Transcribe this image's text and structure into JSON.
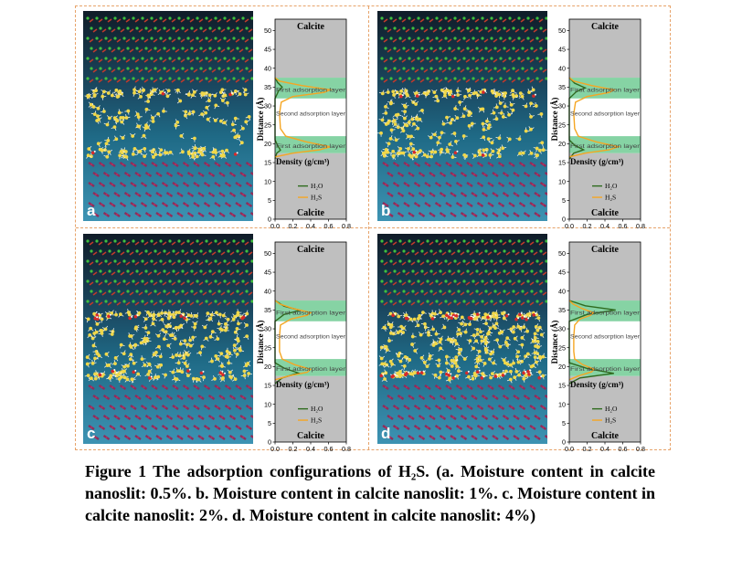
{
  "figure": {
    "caption": "Figure 1 The adsorption configurations of H₂S. (a. Moisture content in calcite nanoslit: 0.5%. b. Moisture content in calcite nanoslit: 1%. c. Moisture content in calcite nanoslit: 2%. d. Moisture content in calcite nanoslit:  4%)",
    "colors": {
      "h2o": "#2f6b1f",
      "h2s": "#f5a623",
      "layer_band": "#86d3a4",
      "slab": "#bfbfbf",
      "gap": "#ffffff"
    }
  },
  "panels": [
    {
      "letter": "a",
      "top_label": "Calcite",
      "bottom_label": "Calcite",
      "ylabel": "Distance (Å)",
      "xlabel": "Density (g/cm³)",
      "layer_labels": [
        "First adsorption layer",
        "Second adsorption layer",
        "First adsorption layer"
      ],
      "legend": [
        "H₂O",
        "H₂S"
      ],
      "chart_data": {
        "type": "line",
        "ylim": [
          0,
          53
        ],
        "xlim": [
          0,
          0.8
        ],
        "yticks": [
          0,
          5,
          10,
          15,
          20,
          25,
          30,
          35,
          40,
          45,
          50
        ],
        "xticks": [
          "0.0",
          "0.2",
          "0.4",
          "0.6",
          "0.8"
        ],
        "slab_lower": [
          0,
          17.5
        ],
        "slab_upper": [
          37.5,
          53
        ],
        "first_layer_bands": [
          [
            17.5,
            22
          ],
          [
            32,
            37.5
          ]
        ],
        "series": [
          {
            "name": "H₂O",
            "points": [
              [
                0.0,
                16
              ],
              [
                0.02,
                17.5
              ],
              [
                0.06,
                18.3
              ],
              [
                0.03,
                19.5
              ],
              [
                0.0,
                21
              ],
              [
                0.0,
                32
              ],
              [
                0.04,
                34
              ],
              [
                0.08,
                35
              ],
              [
                0.03,
                36.2
              ],
              [
                0.0,
                37.5
              ]
            ]
          },
          {
            "name": "H₂S",
            "points": [
              [
                0.0,
                16.5
              ],
              [
                0.2,
                17.5
              ],
              [
                0.5,
                18.4
              ],
              [
                0.62,
                19.2
              ],
              [
                0.35,
                20.5
              ],
              [
                0.12,
                22
              ],
              [
                0.06,
                24
              ],
              [
                0.05,
                28
              ],
              [
                0.07,
                31
              ],
              [
                0.2,
                32.5
              ],
              [
                0.55,
                33.6
              ],
              [
                0.62,
                34.3
              ],
              [
                0.3,
                35.4
              ],
              [
                0.05,
                36.6
              ],
              [
                0.0,
                37.5
              ]
            ]
          }
        ]
      }
    },
    {
      "letter": "b",
      "top_label": "Calcite",
      "bottom_label": "Calcite",
      "ylabel": "Distance (Å)",
      "xlabel": "Density (g/cm³)",
      "layer_labels": [
        "First adsorption layer",
        "Second adsorption layer",
        "First adsorption layer"
      ],
      "legend": [
        "H₂O",
        "H₂S"
      ],
      "chart_data": {
        "type": "line",
        "ylim": [
          0,
          53
        ],
        "xlim": [
          0,
          0.8
        ],
        "yticks": [
          0,
          5,
          10,
          15,
          20,
          25,
          30,
          35,
          40,
          45,
          50
        ],
        "xticks": [
          "0.0",
          "0.2",
          "0.4",
          "0.6",
          "0.8"
        ],
        "slab_lower": [
          0,
          17.5
        ],
        "slab_upper": [
          37.5,
          53
        ],
        "first_layer_bands": [
          [
            17.5,
            22
          ],
          [
            32,
            37.5
          ]
        ],
        "series": [
          {
            "name": "H₂O",
            "points": [
              [
                0.0,
                16
              ],
              [
                0.05,
                17.5
              ],
              [
                0.16,
                18.4
              ],
              [
                0.06,
                19.6
              ],
              [
                0.0,
                21
              ],
              [
                0.0,
                32
              ],
              [
                0.08,
                33.8
              ],
              [
                0.18,
                34.8
              ],
              [
                0.06,
                36
              ],
              [
                0.0,
                37.5
              ]
            ]
          },
          {
            "name": "H₂S",
            "points": [
              [
                0.0,
                16.5
              ],
              [
                0.18,
                17.5
              ],
              [
                0.45,
                18.4
              ],
              [
                0.55,
                19.2
              ],
              [
                0.3,
                20.5
              ],
              [
                0.1,
                22
              ],
              [
                0.06,
                24
              ],
              [
                0.05,
                28
              ],
              [
                0.07,
                31
              ],
              [
                0.2,
                32.5
              ],
              [
                0.45,
                33.6
              ],
              [
                0.5,
                34.3
              ],
              [
                0.25,
                35.4
              ],
              [
                0.05,
                36.6
              ],
              [
                0.0,
                37.5
              ]
            ]
          }
        ]
      }
    },
    {
      "letter": "c",
      "top_label": "Calcite",
      "bottom_label": "Calcite",
      "ylabel": "Distance (Å)",
      "xlabel": "Density (g/cm³)",
      "layer_labels": [
        "First adsorption layer",
        "Second adsorption layer",
        "First adsorption layer"
      ],
      "legend": [
        "H₂O",
        "H₂S"
      ],
      "chart_data": {
        "type": "line",
        "ylim": [
          0,
          53
        ],
        "xlim": [
          0,
          0.8
        ],
        "yticks": [
          0,
          5,
          10,
          15,
          20,
          25,
          30,
          35,
          40,
          45,
          50
        ],
        "xticks": [
          "0.0",
          "0.2",
          "0.4",
          "0.6",
          "0.8"
        ],
        "slab_lower": [
          0,
          17.5
        ],
        "slab_upper": [
          37.5,
          53
        ],
        "first_layer_bands": [
          [
            17.5,
            22
          ],
          [
            32,
            37.5
          ]
        ],
        "series": [
          {
            "name": "H₂O",
            "points": [
              [
                0.0,
                15.5
              ],
              [
                0.08,
                17
              ],
              [
                0.26,
                18.3
              ],
              [
                0.1,
                19.6
              ],
              [
                0.0,
                21
              ],
              [
                0.0,
                32
              ],
              [
                0.1,
                33.8
              ],
              [
                0.28,
                34.9
              ],
              [
                0.1,
                36
              ],
              [
                0.0,
                37.5
              ]
            ]
          },
          {
            "name": "H₂S",
            "points": [
              [
                0.0,
                16.5
              ],
              [
                0.15,
                17.5
              ],
              [
                0.36,
                18.5
              ],
              [
                0.4,
                19.3
              ],
              [
                0.22,
                20.5
              ],
              [
                0.08,
                22
              ],
              [
                0.05,
                24
              ],
              [
                0.05,
                28
              ],
              [
                0.06,
                31
              ],
              [
                0.18,
                32.6
              ],
              [
                0.36,
                33.6
              ],
              [
                0.4,
                34.3
              ],
              [
                0.2,
                35.4
              ],
              [
                0.05,
                36.6
              ],
              [
                0.0,
                37.5
              ]
            ]
          }
        ]
      }
    },
    {
      "letter": "d",
      "top_label": "Calcite",
      "bottom_label": "Calcite",
      "ylabel": "Distance (Å)",
      "xlabel": "Density (g/cm³)",
      "layer_labels": [
        "First adsorption layer",
        "Second adsorption layer",
        "First adsorption layer"
      ],
      "legend": [
        "H₂O",
        "H₂S"
      ],
      "chart_data": {
        "type": "line",
        "ylim": [
          0,
          53
        ],
        "xlim": [
          0,
          0.8
        ],
        "yticks": [
          0,
          5,
          10,
          15,
          20,
          25,
          30,
          35,
          40,
          45,
          50
        ],
        "xticks": [
          "0.0",
          "0.2",
          "0.4",
          "0.6",
          "0.8"
        ],
        "slab_lower": [
          0,
          17.5
        ],
        "slab_upper": [
          37.5,
          53
        ],
        "first_layer_bands": [
          [
            17.5,
            22
          ],
          [
            32,
            37.5
          ]
        ],
        "series": [
          {
            "name": "H₂O",
            "points": [
              [
                0.0,
                15.5
              ],
              [
                0.12,
                17
              ],
              [
                0.5,
                18.2
              ],
              [
                0.2,
                19.5
              ],
              [
                0.0,
                21
              ],
              [
                0.0,
                32
              ],
              [
                0.2,
                33.8
              ],
              [
                0.52,
                35
              ],
              [
                0.18,
                36.1
              ],
              [
                0.0,
                37.5
              ]
            ]
          },
          {
            "name": "H₂S",
            "points": [
              [
                0.0,
                16.5
              ],
              [
                0.1,
                17.5
              ],
              [
                0.25,
                18.6
              ],
              [
                0.28,
                19.3
              ],
              [
                0.15,
                20.5
              ],
              [
                0.06,
                22
              ],
              [
                0.05,
                24
              ],
              [
                0.05,
                28
              ],
              [
                0.06,
                31
              ],
              [
                0.12,
                32.6
              ],
              [
                0.24,
                33.6
              ],
              [
                0.27,
                34.3
              ],
              [
                0.14,
                35.4
              ],
              [
                0.04,
                36.6
              ],
              [
                0.0,
                37.5
              ]
            ]
          }
        ]
      }
    }
  ]
}
